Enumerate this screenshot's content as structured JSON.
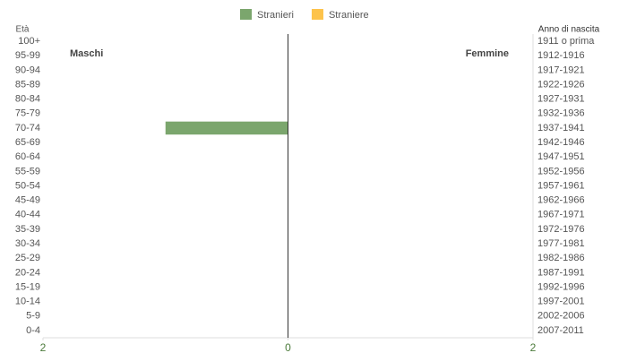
{
  "chart_data": {
    "type": "pyramid",
    "y_title": "Età",
    "y2_title": "Anno di nascita",
    "annotations": [
      "Maschi",
      "Femmine"
    ],
    "categories": [
      "100+",
      "95-99",
      "90-94",
      "85-89",
      "80-84",
      "75-79",
      "70-74",
      "65-69",
      "60-64",
      "55-59",
      "50-54",
      "45-49",
      "40-44",
      "35-39",
      "30-34",
      "25-29",
      "20-24",
      "15-19",
      "10-14",
      "5-9",
      "0-4"
    ],
    "categories2": [
      "1911 o prima",
      "1912-1916",
      "1917-1921",
      "1922-1926",
      "1927-1931",
      "1932-1936",
      "1937-1941",
      "1942-1946",
      "1947-1951",
      "1952-1956",
      "1957-1961",
      "1962-1966",
      "1967-1971",
      "1972-1976",
      "1977-1981",
      "1982-1986",
      "1987-1991",
      "1992-1996",
      "1997-2001",
      "2002-2006",
      "2007-2011"
    ],
    "series": [
      {
        "name": "Stranieri",
        "color": "#7ba66d",
        "values": [
          0,
          0,
          0,
          0,
          0,
          0,
          -1,
          0,
          0,
          0,
          0,
          0,
          0,
          0,
          0,
          0,
          0,
          0,
          0,
          0,
          0
        ]
      },
      {
        "name": "Straniere",
        "color": "#fdc34b",
        "values": [
          0,
          0,
          0,
          0,
          0,
          0,
          0,
          0,
          0,
          0,
          0,
          0,
          0,
          0,
          0,
          0,
          0,
          0,
          0,
          0,
          0
        ]
      }
    ],
    "xlim": [
      -2,
      2
    ],
    "xticks": [
      {
        "value": -2,
        "label": "2"
      },
      0,
      2
    ]
  }
}
